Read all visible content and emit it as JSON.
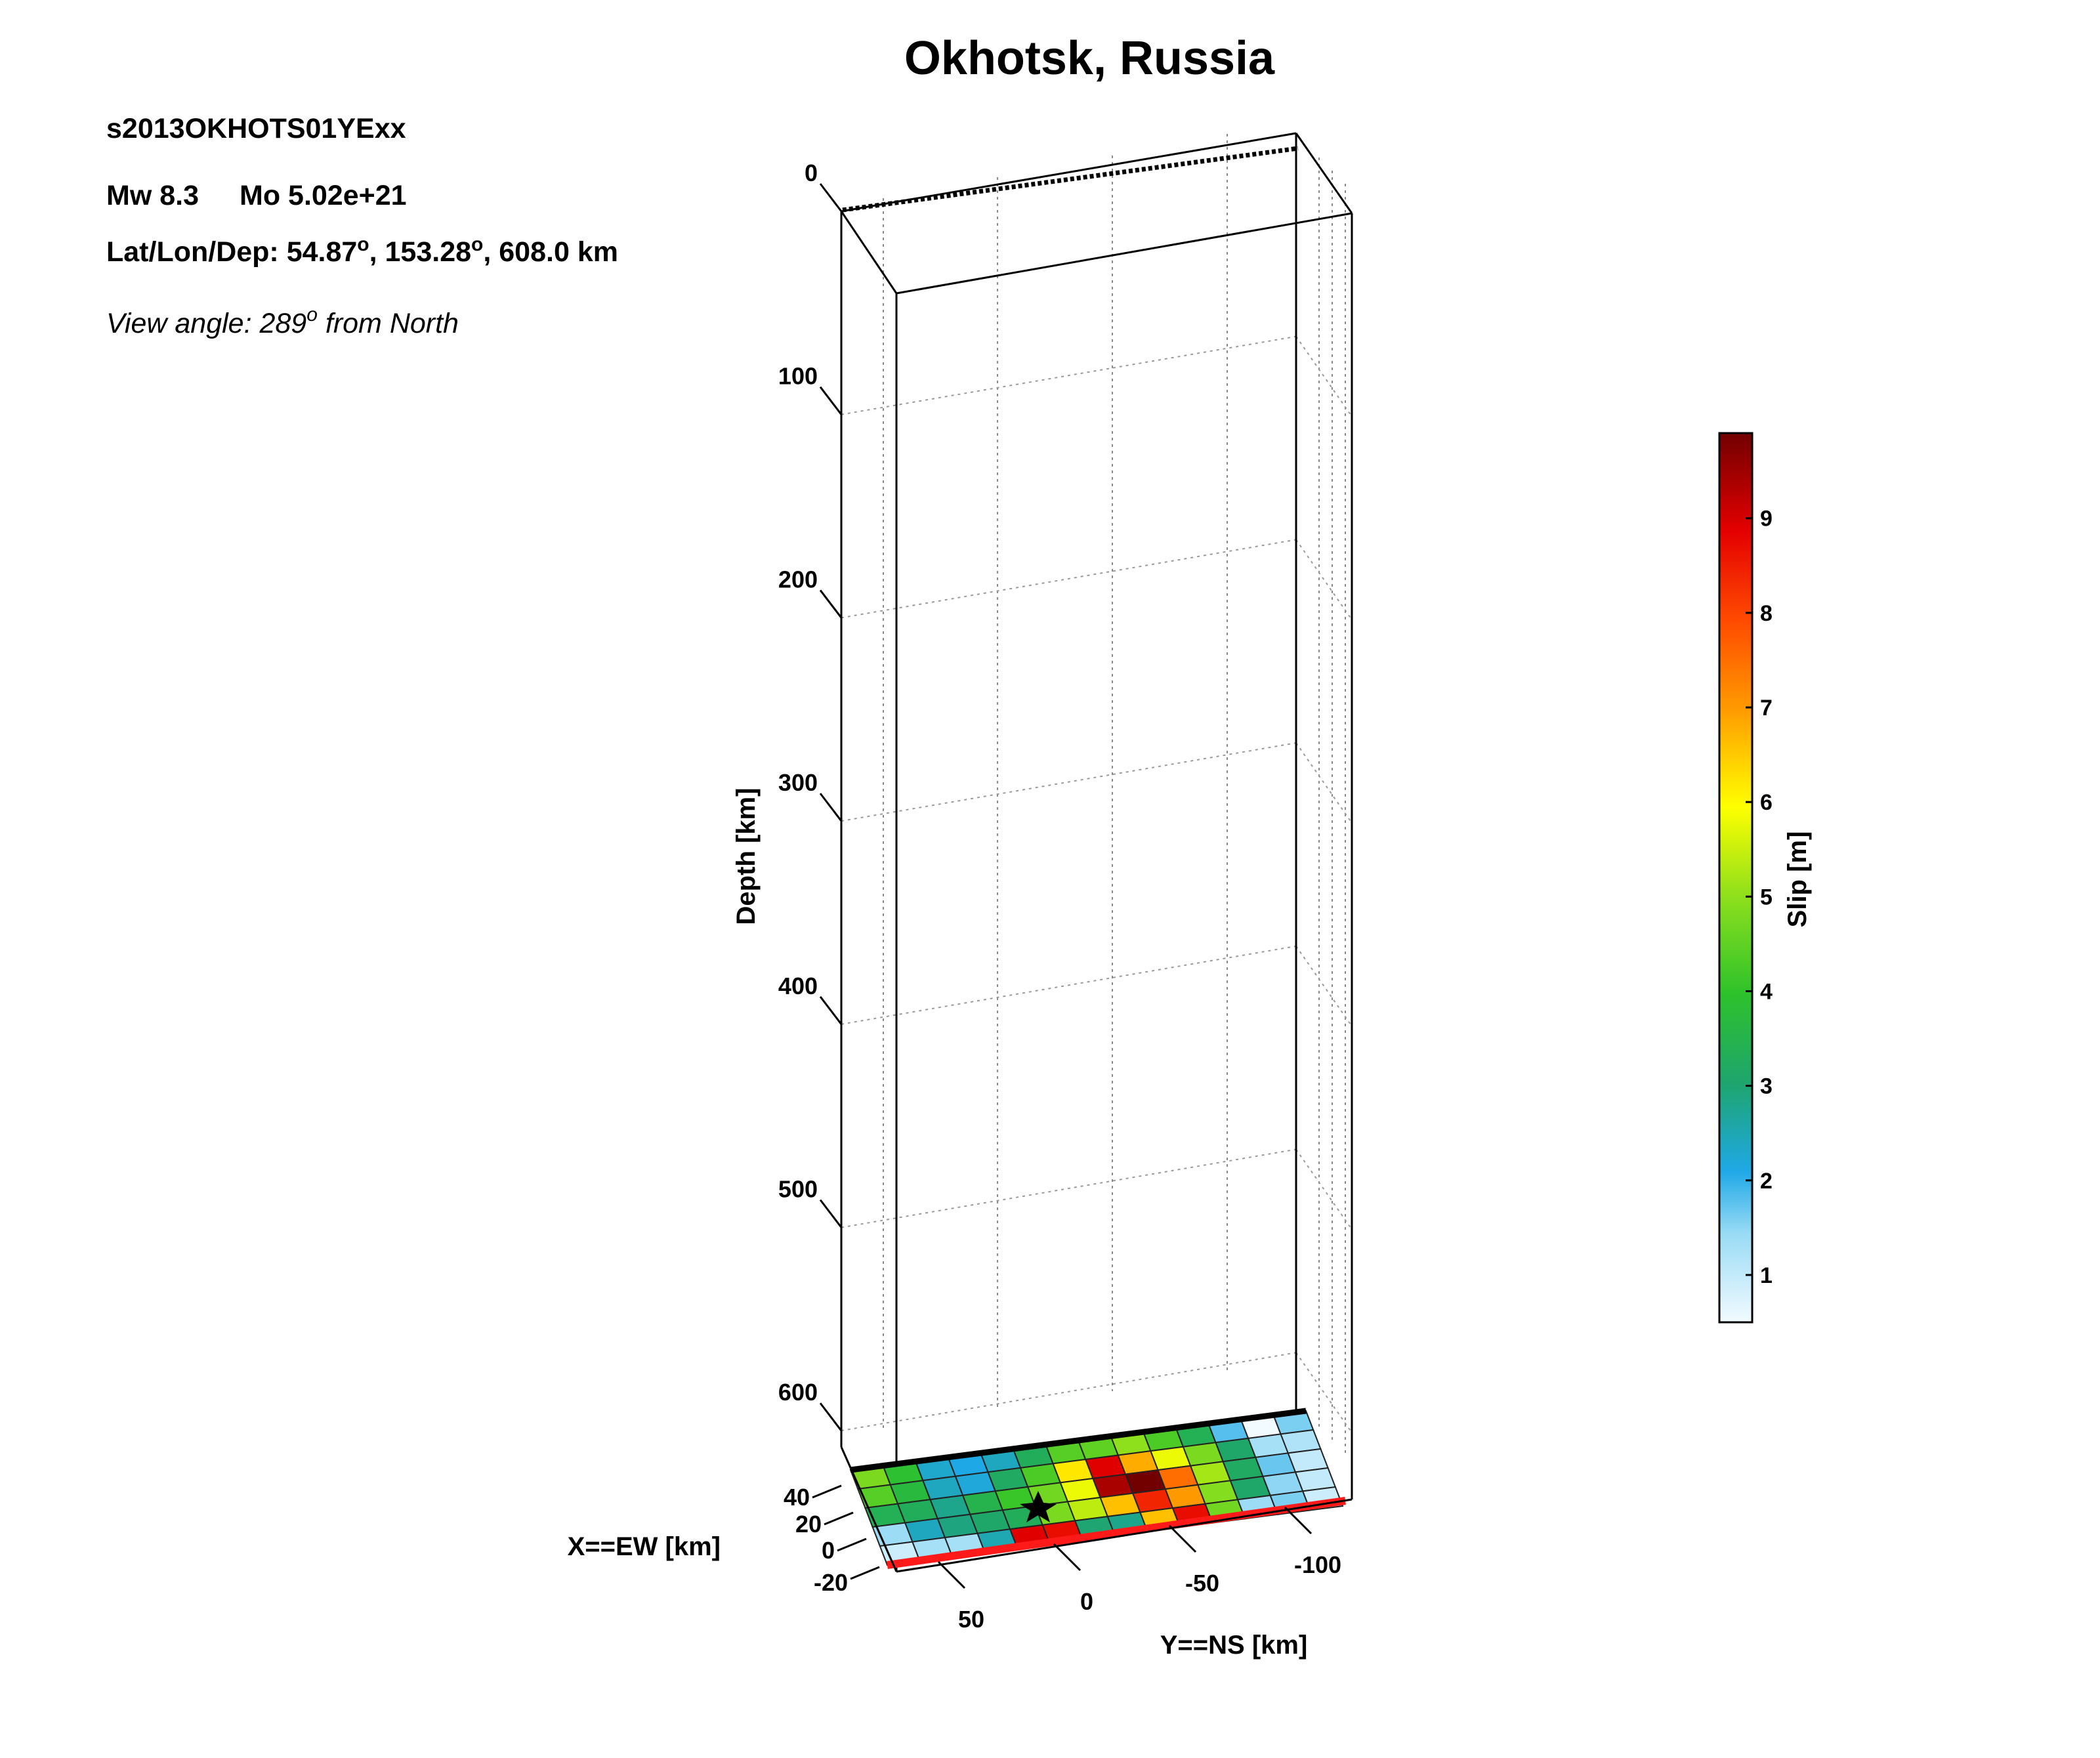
{
  "header": {
    "title": "Okhotsk, Russia",
    "event_id": "s2013OKHOTS01YExx",
    "mw_label": "Mw 8.3",
    "mo_label": "Mo 5.02e+21",
    "location_prefix": "Lat/Lon/Dep: 54.87",
    "location_mid": ", 153.28",
    "location_suffix": ", 608.0 km",
    "degree_symbol": "o",
    "view_prefix": "View angle: 289",
    "view_suffix": " from North"
  },
  "chart_data": {
    "type": "heatmap",
    "title": "Okhotsk, Russia",
    "zlabel": "Depth [km]",
    "xlabel": "X==EW [km]",
    "ylabel": "Y==NS [km]",
    "depth_ticks": [
      0,
      100,
      200,
      300,
      400,
      500,
      600
    ],
    "x_ticks": [
      -20,
      0,
      20,
      40
    ],
    "y_ticks": [
      50,
      0,
      -50,
      -100
    ],
    "zlim": [
      0,
      608
    ],
    "colorbar": {
      "label": "Slip [m]",
      "ticks": [
        1,
        2,
        3,
        4,
        5,
        6,
        7,
        8,
        9
      ],
      "range": [
        0.5,
        9.9
      ]
    },
    "slip_grid": [
      [
        4.8,
        3.9,
        2.3,
        2.1,
        2.4,
        3.3,
        4.4,
        4.5,
        5.0,
        4.3,
        3.4,
        1.8,
        0.5,
        1.6
      ],
      [
        4.4,
        3.7,
        2.4,
        2.2,
        3.2,
        4.3,
        6.2,
        8.9,
        6.8,
        5.8,
        4.8,
        3.1,
        1.3,
        1.2
      ],
      [
        3.4,
        3.3,
        2.8,
        3.5,
        4.1,
        4.7,
        5.8,
        9.4,
        9.9,
        7.5,
        5.2,
        3.2,
        1.7,
        1.0
      ],
      [
        1.4,
        2.4,
        2.9,
        3.1,
        3.3,
        4.8,
        5.4,
        6.6,
        8.4,
        7.0,
        4.9,
        3.1,
        1.5,
        1.0
      ],
      [
        0.9,
        1.3,
        1.3,
        2.5,
        8.9,
        8.7,
        3.0,
        2.8,
        6.6,
        8.7,
        4.7,
        1.4,
        1.6,
        0.9
      ]
    ]
  }
}
